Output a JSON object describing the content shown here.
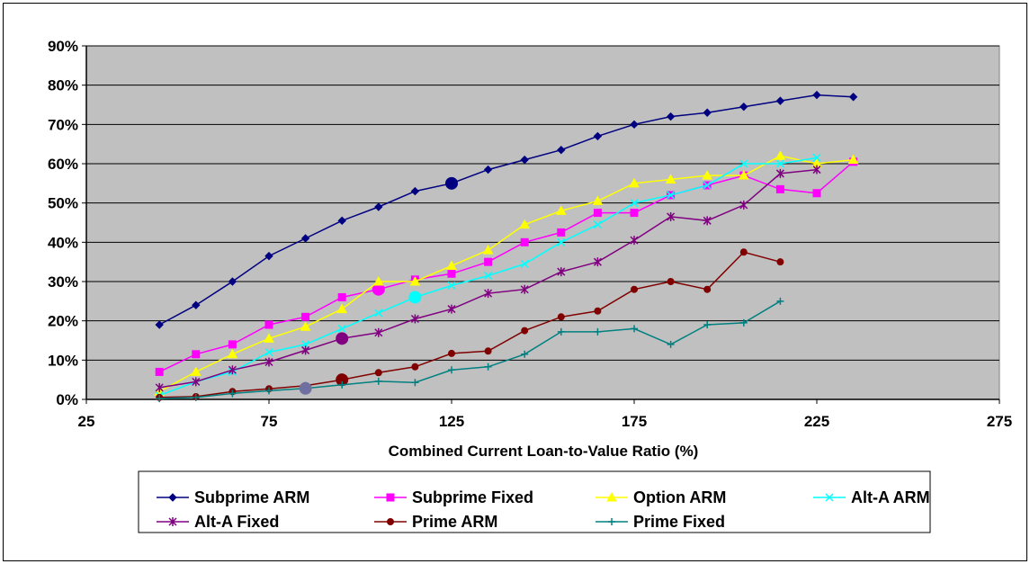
{
  "chart_data": {
    "type": "line",
    "title": "",
    "xlabel": "Combined Current Loan-to-Value Ratio (%)",
    "ylabel": "",
    "xlim": [
      25,
      275
    ],
    "ylim": [
      0,
      0.9
    ],
    "x_ticks": [
      "25",
      "75",
      "125",
      "175",
      "225",
      "275"
    ],
    "y_ticks": [
      "0%",
      "10%",
      "20%",
      "30%",
      "40%",
      "50%",
      "60%",
      "70%",
      "80%",
      "90%"
    ],
    "grid": "horizontal",
    "plot_background": "#c0c0c0",
    "legend_position": "bottom",
    "series": [
      {
        "name": "Subprime ARM",
        "color": "#000080",
        "marker": "diamond",
        "x": [
          45,
          55,
          65,
          75,
          85,
          95,
          105,
          115,
          125,
          135,
          145,
          155,
          165,
          175,
          185,
          195,
          205,
          215,
          225,
          235
        ],
        "values": [
          0.19,
          0.24,
          0.3,
          0.365,
          0.41,
          0.455,
          0.49,
          0.53,
          0.55,
          0.585,
          0.61,
          0.635,
          0.67,
          0.7,
          0.72,
          0.73,
          0.745,
          0.76,
          0.775,
          0.77
        ],
        "highlight": {
          "x": 125,
          "value": 0.55
        }
      },
      {
        "name": "Subprime Fixed",
        "color": "#ff00ff",
        "marker": "square",
        "x": [
          45,
          55,
          65,
          75,
          85,
          95,
          105,
          115,
          125,
          135,
          145,
          155,
          165,
          175,
          185,
          195,
          205,
          215,
          225,
          235
        ],
        "values": [
          0.07,
          0.115,
          0.14,
          0.19,
          0.21,
          0.26,
          0.28,
          0.305,
          0.32,
          0.35,
          0.4,
          0.425,
          0.475,
          0.475,
          0.52,
          0.545,
          0.57,
          0.535,
          0.525,
          0.605
        ],
        "highlight": {
          "x": 105,
          "value": 0.28
        }
      },
      {
        "name": "Option ARM",
        "color": "#ffff00",
        "marker": "triangle",
        "x": [
          45,
          55,
          65,
          75,
          85,
          95,
          105,
          115,
          125,
          135,
          145,
          155,
          165,
          175,
          185,
          195,
          205,
          215,
          225,
          235
        ],
        "values": [
          0.02,
          0.07,
          0.115,
          0.155,
          0.185,
          0.23,
          0.3,
          0.3,
          0.34,
          0.38,
          0.445,
          0.48,
          0.505,
          0.55,
          0.56,
          0.57,
          0.57,
          0.62,
          0.6,
          0.61
        ]
      },
      {
        "name": "Alt-A ARM",
        "color": "#00ffff",
        "marker": "x",
        "x": [
          45,
          55,
          65,
          75,
          85,
          95,
          105,
          115,
          125,
          135,
          145,
          155,
          165,
          175,
          185,
          195,
          205,
          215,
          225
        ],
        "values": [
          0.01,
          0.045,
          0.07,
          0.12,
          0.14,
          0.18,
          0.22,
          0.26,
          0.29,
          0.315,
          0.345,
          0.4,
          0.445,
          0.5,
          0.52,
          0.545,
          0.6,
          0.6,
          0.615
        ],
        "highlight": {
          "x": 115,
          "value": 0.26
        }
      },
      {
        "name": "Alt-A Fixed",
        "color": "#800080",
        "marker": "star",
        "x": [
          45,
          55,
          65,
          75,
          85,
          95,
          105,
          115,
          125,
          135,
          145,
          155,
          165,
          175,
          185,
          195,
          205,
          215,
          225
        ],
        "values": [
          0.03,
          0.045,
          0.075,
          0.095,
          0.125,
          0.155,
          0.17,
          0.205,
          0.23,
          0.27,
          0.28,
          0.325,
          0.35,
          0.405,
          0.465,
          0.455,
          0.495,
          0.575,
          0.585
        ],
        "highlight": {
          "x": 95,
          "value": 0.155
        }
      },
      {
        "name": "Prime ARM",
        "color": "#800000",
        "marker": "circle",
        "x": [
          45,
          55,
          65,
          75,
          85,
          95,
          105,
          115,
          125,
          135,
          145,
          155,
          165,
          175,
          185,
          195,
          205,
          215
        ],
        "values": [
          0.005,
          0.007,
          0.02,
          0.027,
          0.035,
          0.05,
          0.068,
          0.083,
          0.117,
          0.123,
          0.175,
          0.21,
          0.225,
          0.28,
          0.3,
          0.28,
          0.375,
          0.35
        ],
        "highlight": {
          "x": 95,
          "value": 0.05
        }
      },
      {
        "name": "Prime Fixed",
        "color": "#008080",
        "marker": "plus",
        "x": [
          45,
          55,
          65,
          75,
          85,
          95,
          105,
          115,
          125,
          135,
          145,
          155,
          165,
          175,
          185,
          195,
          205,
          215
        ],
        "values": [
          0.002,
          0.005,
          0.015,
          0.022,
          0.028,
          0.037,
          0.046,
          0.043,
          0.075,
          0.083,
          0.115,
          0.172,
          0.172,
          0.18,
          0.14,
          0.19,
          0.195,
          0.25
        ],
        "highlight": {
          "x": 85,
          "value": 0.028,
          "color": "#7070a0"
        }
      }
    ]
  }
}
